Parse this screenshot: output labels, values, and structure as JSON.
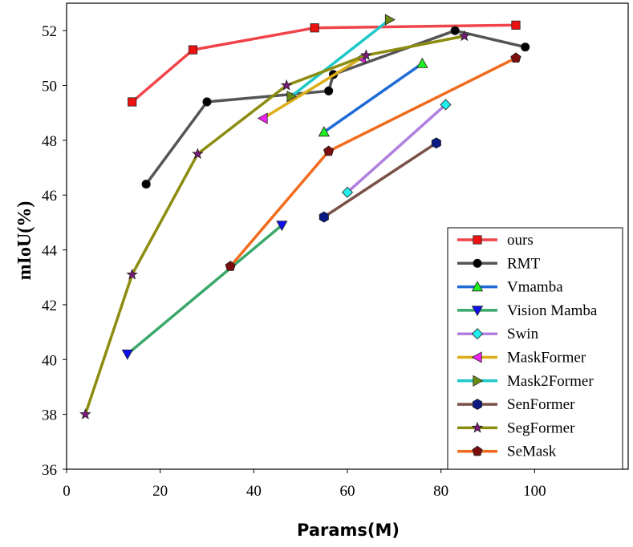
{
  "chart_data": {
    "type": "line",
    "title": "",
    "xlabel": "Params(M)",
    "ylabel": "mIoU(%)",
    "xlim": [
      0,
      120
    ],
    "ylim": [
      36,
      53
    ],
    "xticks": [
      0,
      20,
      40,
      60,
      80,
      100
    ],
    "yticks": [
      36,
      38,
      40,
      42,
      44,
      46,
      48,
      50,
      52
    ],
    "grid": false,
    "legend_position": "bottom-right",
    "series": [
      {
        "name": "ours",
        "color": "#f0444a",
        "marker": "square",
        "marker_color": "#ee1111",
        "x": [
          14,
          27,
          53,
          96
        ],
        "y": [
          49.4,
          51.3,
          52.1,
          52.2
        ]
      },
      {
        "name": "RMT",
        "color": "#555555",
        "marker": "circle",
        "marker_color": "#000000",
        "x": [
          17,
          30,
          56,
          57,
          83,
          98
        ],
        "y": [
          46.4,
          49.4,
          49.8,
          50.4,
          52.0,
          51.4
        ]
      },
      {
        "name": "Vmamba",
        "color": "#1f6bd6",
        "marker": "triangle-up",
        "marker_color": "#22ee22",
        "x": [
          55,
          76
        ],
        "y": [
          48.3,
          50.8
        ]
      },
      {
        "name": "Vision Mamba",
        "color": "#3aa86a",
        "marker": "triangle-down",
        "marker_color": "#1010ee",
        "x": [
          13,
          46
        ],
        "y": [
          40.2,
          44.9
        ]
      },
      {
        "name": "Swin",
        "color": "#b07fe0",
        "marker": "diamond",
        "marker_color": "#22eeee",
        "x": [
          60,
          81
        ],
        "y": [
          46.1,
          49.3
        ]
      },
      {
        "name": "MaskFormer",
        "color": "#dcae18",
        "marker": "triangle-left",
        "marker_color": "#ee22ee",
        "x": [
          42,
          63
        ],
        "y": [
          48.8,
          51.0
        ]
      },
      {
        "name": "Mask2Former",
        "color": "#1ec8c8",
        "marker": "triangle-right",
        "marker_color": "#6b8a12",
        "x": [
          48,
          69
        ],
        "y": [
          49.6,
          52.4
        ]
      },
      {
        "name": "SenFormer",
        "color": "#7a5148",
        "marker": "hexagon",
        "marker_color": "#0a1a80",
        "x": [
          55,
          79
        ],
        "y": [
          45.2,
          47.9
        ]
      },
      {
        "name": "SegFormer",
        "color": "#8c8c10",
        "marker": "star",
        "marker_color": "#7a1a7a",
        "x": [
          4,
          14,
          28,
          47,
          64,
          85
        ],
        "y": [
          38.0,
          43.1,
          47.5,
          50.0,
          51.1,
          51.8
        ]
      },
      {
        "name": "SeMask",
        "color": "#f26b1d",
        "marker": "pentagon",
        "marker_color": "#7a0e0e",
        "x": [
          35,
          56,
          96
        ],
        "y": [
          43.4,
          47.6,
          51.0
        ]
      }
    ]
  }
}
